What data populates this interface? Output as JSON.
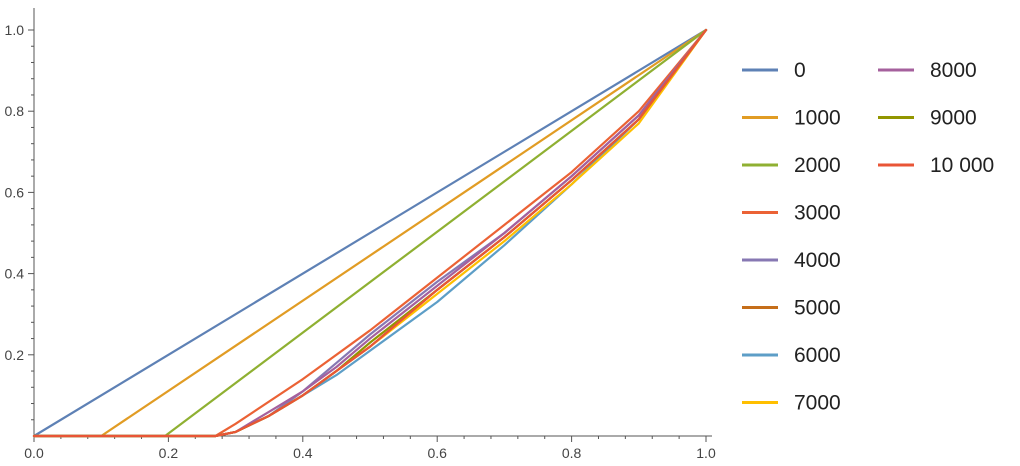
{
  "chart_data": {
    "type": "line",
    "title": "",
    "xlabel": "",
    "ylabel": "",
    "xlim": [
      0,
      1
    ],
    "ylim": [
      0,
      1.05
    ],
    "grid": false,
    "legend_position": "right",
    "x_ticks": [
      "0.0",
      "0.2",
      "0.4",
      "0.6",
      "0.8",
      "1.0"
    ],
    "y_ticks": [
      "0.2",
      "0.4",
      "0.6",
      "0.8",
      "1.0"
    ],
    "series": [
      {
        "name": "0",
        "color": "#5E81B5",
        "x": [
          0,
          1
        ],
        "y": [
          0,
          1
        ]
      },
      {
        "name": "1000",
        "color": "#E19C24",
        "x": [
          0,
          0.1,
          1
        ],
        "y": [
          0,
          0,
          1
        ]
      },
      {
        "name": "2000",
        "color": "#8FB032",
        "x": [
          0,
          0.195,
          1
        ],
        "y": [
          0,
          0,
          1
        ]
      },
      {
        "name": "3000",
        "color": "#EB6235",
        "x": [
          0,
          0.27,
          0.3,
          0.4,
          0.5,
          0.6,
          0.7,
          0.8,
          0.9,
          1
        ],
        "y": [
          0,
          0,
          0.03,
          0.14,
          0.26,
          0.39,
          0.52,
          0.65,
          0.8,
          1
        ]
      },
      {
        "name": "4000",
        "color": "#8778B3",
        "x": [
          0,
          0.27,
          0.3,
          0.35,
          0.4,
          0.45,
          0.5,
          0.6,
          0.7,
          0.8,
          0.9,
          1
        ],
        "y": [
          0,
          0,
          0.01,
          0.05,
          0.11,
          0.18,
          0.25,
          0.38,
          0.5,
          0.64,
          0.79,
          1
        ]
      },
      {
        "name": "5000",
        "color": "#C56E1A",
        "x": [
          0,
          0.27,
          0.3,
          0.35,
          0.4,
          0.45,
          0.5,
          0.6,
          0.7,
          0.8,
          0.9,
          1
        ],
        "y": [
          0,
          0,
          0.01,
          0.05,
          0.1,
          0.16,
          0.22,
          0.36,
          0.49,
          0.63,
          0.78,
          1
        ]
      },
      {
        "name": "6000",
        "color": "#5D9EC7",
        "x": [
          0,
          0.27,
          0.3,
          0.35,
          0.4,
          0.45,
          0.5,
          0.6,
          0.7,
          0.8,
          0.9,
          1
        ],
        "y": [
          0,
          0,
          0.01,
          0.05,
          0.1,
          0.15,
          0.21,
          0.33,
          0.47,
          0.62,
          0.78,
          1
        ]
      },
      {
        "name": "7000",
        "color": "#FFBF00",
        "x": [
          0,
          0.27,
          0.3,
          0.35,
          0.4,
          0.45,
          0.5,
          0.6,
          0.7,
          0.8,
          0.9,
          1
        ],
        "y": [
          0,
          0,
          0.01,
          0.05,
          0.1,
          0.16,
          0.22,
          0.35,
          0.48,
          0.62,
          0.77,
          1
        ]
      },
      {
        "name": "8000",
        "color": "#A5609D",
        "x": [
          0,
          0.27,
          0.3,
          0.35,
          0.4,
          0.45,
          0.5,
          0.6,
          0.7,
          0.8,
          0.9,
          1
        ],
        "y": [
          0,
          0,
          0.01,
          0.06,
          0.11,
          0.17,
          0.24,
          0.37,
          0.5,
          0.64,
          0.79,
          1
        ]
      },
      {
        "name": "9000",
        "color": "#929600",
        "x": [
          0,
          0.27,
          0.3,
          0.35,
          0.4,
          0.45,
          0.5,
          0.6,
          0.7,
          0.8,
          0.9,
          1
        ],
        "y": [
          0,
          0,
          0.01,
          0.05,
          0.1,
          0.16,
          0.23,
          0.36,
          0.49,
          0.63,
          0.78,
          1
        ]
      },
      {
        "name": "10 000",
        "color": "#E95536",
        "x": [
          0,
          0.27,
          0.3,
          0.35,
          0.4,
          0.45,
          0.5,
          0.6,
          0.7,
          0.8,
          0.9,
          1
        ],
        "y": [
          0,
          0,
          0.01,
          0.05,
          0.1,
          0.16,
          0.22,
          0.36,
          0.49,
          0.63,
          0.78,
          1
        ]
      }
    ]
  }
}
